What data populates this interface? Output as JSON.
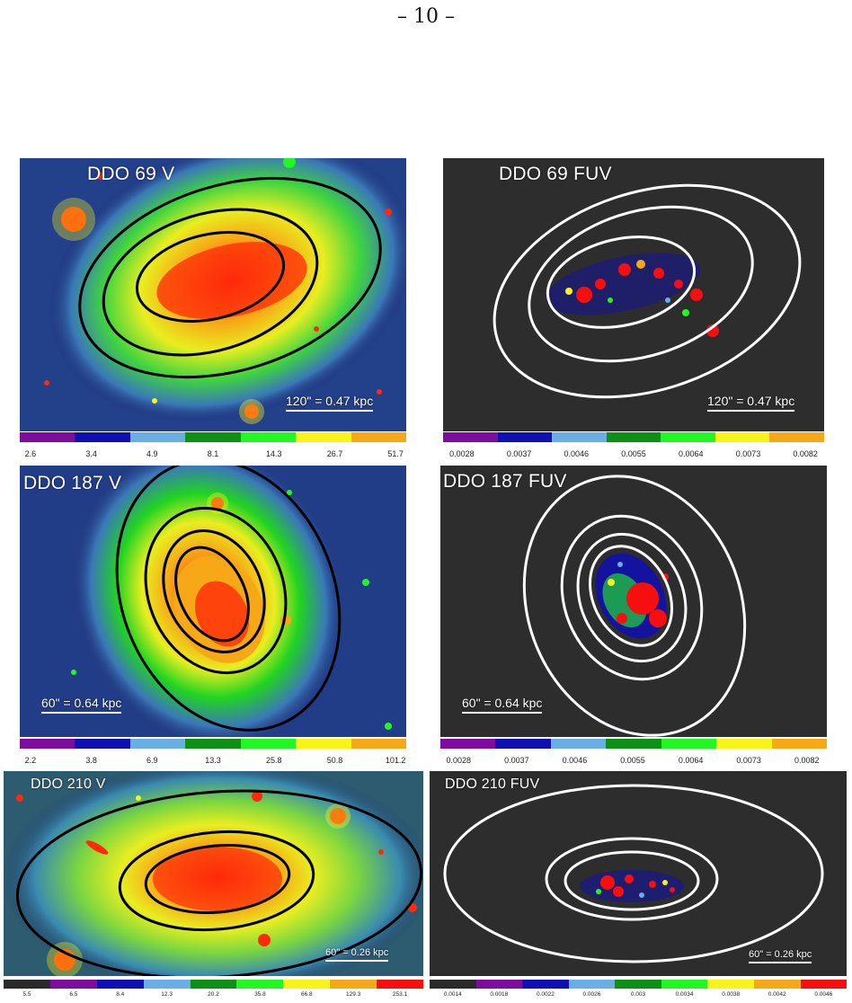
{
  "page_number": "– 10 –",
  "colors": {
    "colorbar": [
      "#7e0c9e",
      "#0f0fb4",
      "#6aaee6",
      "#0e8f16",
      "#21f721",
      "#f7f416",
      "#f7a816"
    ],
    "colorbar_long": [
      "#2a2a2a",
      "#7e0c9e",
      "#0f0fb4",
      "#6aaee6",
      "#0e8f16",
      "#21f721",
      "#f7f416",
      "#f7a816",
      "#f70f0f"
    ],
    "optical_ellipses": "#000000",
    "fuv_ellipses": "#ffffff",
    "fuv_background": "#2d2d2d"
  },
  "panels": [
    {
      "id": "ddo69-v",
      "label": "DDO 69 V",
      "scale": "120\" = 0.47 kpc",
      "ticks": [
        "2.6",
        "3.4",
        "4.9",
        "8.1",
        "14.3",
        "26.7",
        "51.7"
      ]
    },
    {
      "id": "ddo69-fuv",
      "label": "DDO 69 FUV",
      "scale": "120\" = 0.47 kpc",
      "ticks": [
        "0.0028",
        "0.0037",
        "0.0046",
        "0.0055",
        "0.0064",
        "0.0073",
        "0.0082"
      ]
    },
    {
      "id": "ddo187-v",
      "label": "DDO 187 V",
      "scale": "60\" = 0.64 kpc",
      "ticks": [
        "2.2",
        "3.8",
        "6.9",
        "13.3",
        "25.8",
        "50.8",
        "101.2"
      ]
    },
    {
      "id": "ddo187-fuv",
      "label": "DDO 187 FUV",
      "scale": "60\" = 0.64 kpc",
      "ticks": [
        "0.0028",
        "0.0037",
        "0.0046",
        "0.0055",
        "0.0064",
        "0.0073",
        "0.0082"
      ]
    },
    {
      "id": "ddo210-v",
      "label": "DDO 210 V",
      "scale": "60\" = 0.26 kpc",
      "ticks": [
        "5.5",
        "6.5",
        "8.4",
        "12.3",
        "20.2",
        "35.8",
        "66.8",
        "129.3",
        "253.1"
      ]
    },
    {
      "id": "ddo210-fuv",
      "label": "DDO 210 FUV",
      "scale": "60\" = 0.26 kpc",
      "ticks": [
        "0.0014",
        "0.0018",
        "0.0022",
        "0.0026",
        "0.003",
        "0.0034",
        "0.0038",
        "0.0042",
        "0.0046"
      ]
    }
  ]
}
